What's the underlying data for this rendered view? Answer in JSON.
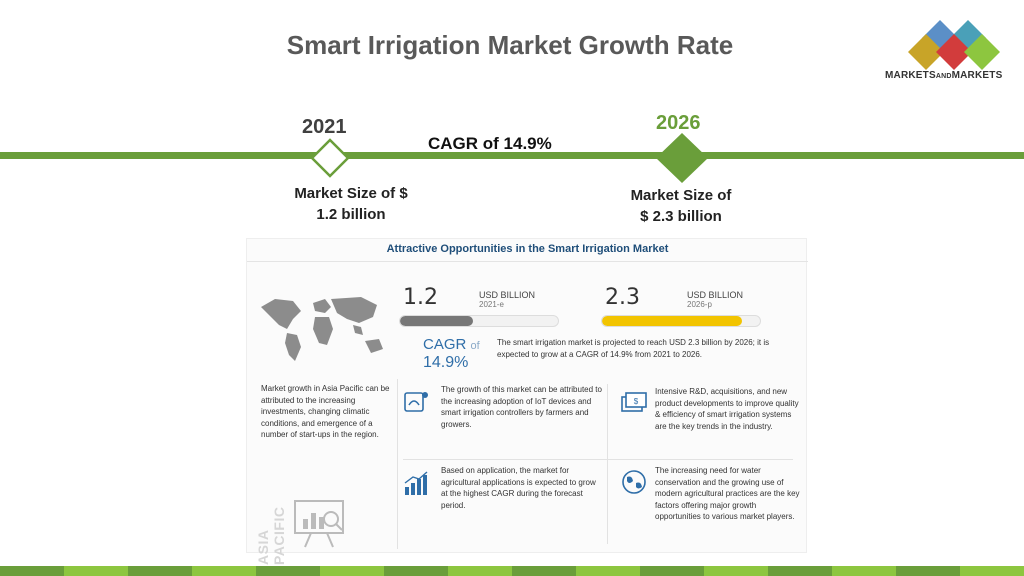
{
  "slide": {
    "title": "Smart Irrigation Market Growth Rate"
  },
  "logo": {
    "text_main_1": "MARKETS",
    "text_and": "AND",
    "text_main_2": "MARKETS",
    "colors": [
      "#2e6da4",
      "#c9443e",
      "#8dc63f",
      "#6b3b8a",
      "#2a9d8f"
    ]
  },
  "timeline": {
    "year_start": "2021",
    "year_end": "2026",
    "cagr_text": "CAGR of 14.9%",
    "size_start_line1": "Market Size of $",
    "size_start_line2": "1.2 billion",
    "size_end_line1": "Market Size of",
    "size_end_line2": "$ 2.3 billion",
    "line_color": "#6a9e3a"
  },
  "infographic": {
    "title": "Attractive Opportunities in the Smart Irrigation Market",
    "value_2021": "1.2",
    "unit_2021": "USD BILLION",
    "sub_2021": "2021-e",
    "value_2026": "2.3",
    "unit_2026": "USD BILLION",
    "sub_2026": "2026-p",
    "cagr_word": "CAGR",
    "cagr_of": "of",
    "cagr_value": "14.9%",
    "projection_text": "The smart irrigation market is projected to reach USD 2.3 billion by 2026; it is expected to grow at a CAGR of 14.9% from 2021 to 2026.",
    "asia_text": "Market growth in Asia Pacific can be attributed to the increasing investments, changing climatic conditions, and emergence of a number of start-ups in the region.",
    "asia_vertical": "ASIA PACIFIC",
    "card_iot": "The growth of this market can be attributed to the increasing adoption of IoT devices and smart irrigation controllers by farmers and growers.",
    "card_rd": "Intensive R&D, acquisitions, and new product developments to improve quality & efficiency of smart irrigation systems are the key trends in the industry.",
    "card_application": "Based on application, the market for agricultural applications is expected to grow at the highest CAGR during the forecast period.",
    "card_water": "The increasing need for water conservation and the growing use of modern agricultural practices are the key factors offering major growth opportunities to various market players.",
    "bar_2021_color": "#777777",
    "bar_2026_color": "#f2c400"
  },
  "chart_data": {
    "type": "bar",
    "categories": [
      "2021-e",
      "2026-p"
    ],
    "values": [
      1.2,
      2.3
    ],
    "unit": "USD BILLION",
    "title": "",
    "cagr": "14.9%"
  },
  "footer": {
    "stripe_colors": [
      "#6a9e3a",
      "#8dc63f"
    ]
  }
}
